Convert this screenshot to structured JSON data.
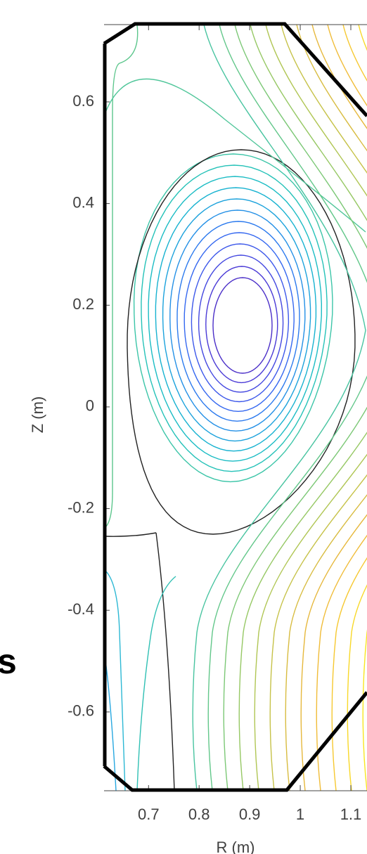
{
  "chart_data": {
    "type": "contour",
    "xlabel": "R (m)",
    "ylabel": "Z (m)",
    "xlim": [
      0.612,
      1.132
    ],
    "ylim": [
      -0.755,
      0.752
    ],
    "xticks": [
      0.7,
      0.8,
      0.9,
      1,
      1.1
    ],
    "yticks": [
      -0.6,
      -0.4,
      -0.2,
      0,
      0.2,
      0.4,
      0.6
    ],
    "annotations": [
      "s"
    ]
  }
}
